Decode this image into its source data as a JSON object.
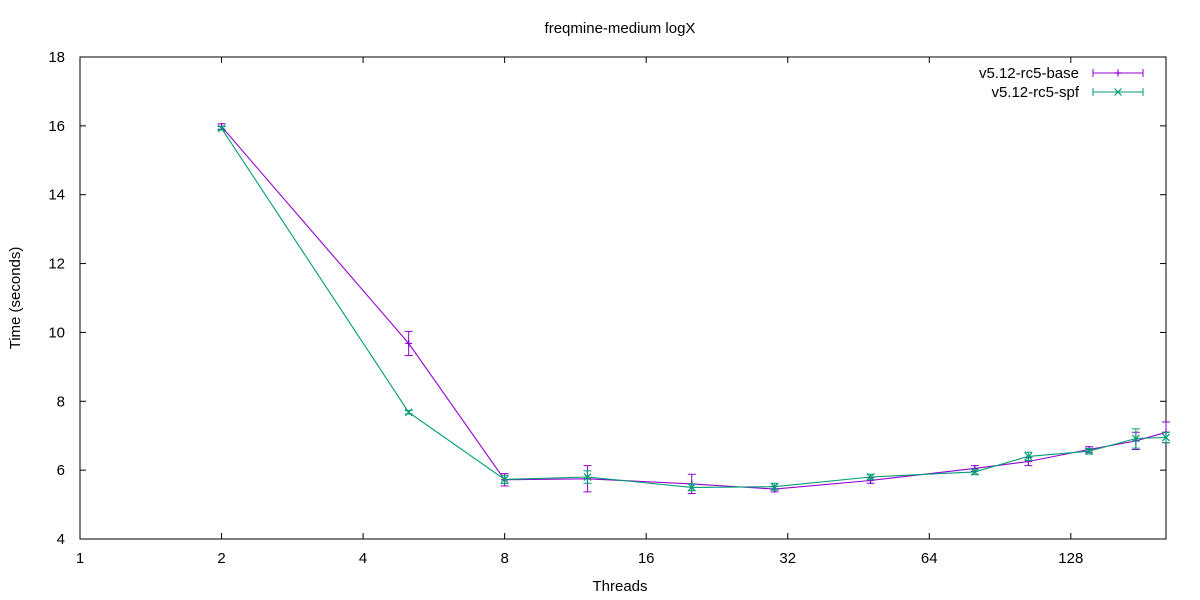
{
  "chart_data": {
    "type": "line",
    "title": "freqmine-medium logX",
    "xlabel": "Threads",
    "ylabel": "Time (seconds)",
    "x_scale": "log2",
    "xlim": [
      1,
      204
    ],
    "ylim": [
      4,
      18
    ],
    "x_ticks": [
      1,
      2,
      4,
      8,
      16,
      32,
      64,
      128
    ],
    "y_ticks": [
      4,
      6,
      8,
      10,
      12,
      14,
      16,
      18
    ],
    "grid": false,
    "legend_position": "top-right",
    "series": [
      {
        "name": "v5.12-rc5-base",
        "color": "#9400d3",
        "marker": "plus",
        "x": [
          2,
          5,
          8,
          12,
          20,
          30,
          48,
          80,
          104,
          140,
          176,
          204
        ],
        "y": [
          15.98,
          9.68,
          5.72,
          5.75,
          5.6,
          5.45,
          5.7,
          6.05,
          6.25,
          6.6,
          6.85,
          7.1
        ],
        "err": [
          0.08,
          0.35,
          0.18,
          0.38,
          0.28,
          0.08,
          0.08,
          0.08,
          0.12,
          0.08,
          0.25,
          0.3
        ]
      },
      {
        "name": "v5.12-rc5-spf",
        "color": "#009e73",
        "marker": "cross",
        "x": [
          2,
          5,
          8,
          12,
          20,
          30,
          48,
          80,
          104,
          140,
          176,
          204
        ],
        "y": [
          15.93,
          7.68,
          5.73,
          5.8,
          5.5,
          5.52,
          5.8,
          5.95,
          6.4,
          6.55,
          6.92,
          6.95
        ],
        "err": [
          0.05,
          0.05,
          0.12,
          0.18,
          0.1,
          0.1,
          0.08,
          0.08,
          0.12,
          0.08,
          0.28,
          0.15
        ]
      }
    ]
  }
}
